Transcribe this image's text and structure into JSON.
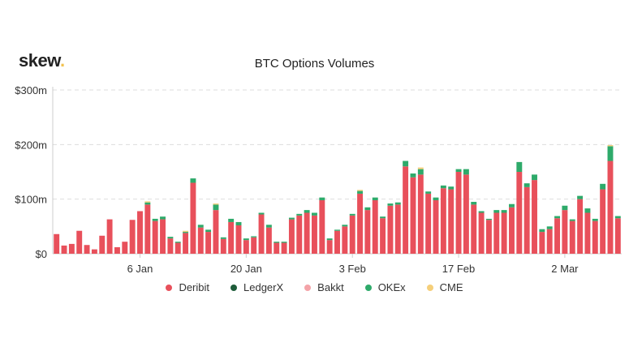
{
  "logo": {
    "text": "skew",
    "dot": ".",
    "dot_color": "#f2c14e"
  },
  "chart_data": {
    "type": "bar",
    "stacked": true,
    "title": "BTC Options Volumes",
    "xlabel": "",
    "ylabel": "",
    "ylim": [
      0,
      300
    ],
    "y_ticks": [
      {
        "value": 0,
        "label": "$0"
      },
      {
        "value": 100,
        "label": "$100m"
      },
      {
        "value": 200,
        "label": "$200m"
      },
      {
        "value": 300,
        "label": "$300m"
      }
    ],
    "x_ticks": [
      {
        "index": 11,
        "label": "6 Jan"
      },
      {
        "index": 25,
        "label": "20 Jan"
      },
      {
        "index": 39,
        "label": "3 Feb"
      },
      {
        "index": 53,
        "label": "17 Feb"
      },
      {
        "index": 67,
        "label": "2 Mar"
      }
    ],
    "grid": true,
    "legend_position": "bottom",
    "series": [
      {
        "name": "Deribit",
        "color": "#e8505b",
        "values": [
          36,
          15,
          18,
          42,
          16,
          8,
          33,
          63,
          12,
          22,
          62,
          78,
          90,
          60,
          63,
          28,
          20,
          38,
          130,
          48,
          40,
          80,
          27,
          58,
          52,
          25,
          30,
          72,
          48,
          20,
          20,
          63,
          70,
          75,
          70,
          98,
          25,
          42,
          50,
          70,
          110,
          80,
          98,
          65,
          88,
          90,
          160,
          140,
          145,
          110,
          98,
          120,
          118,
          150,
          145,
          90,
          75,
          62,
          75,
          75,
          85,
          150,
          122,
          135,
          40,
          45,
          65,
          80,
          60,
          100,
          75,
          60,
          118,
          170,
          65
        ]
      },
      {
        "name": "LedgerX",
        "color": "#1e5c3a",
        "values": [
          0,
          0,
          0,
          0,
          0,
          0,
          0,
          0,
          0,
          0,
          0,
          0,
          0,
          0,
          0,
          0,
          0,
          0,
          0,
          0,
          0,
          0,
          0,
          0,
          0,
          0,
          0,
          0,
          0,
          0,
          0,
          0,
          0,
          0,
          0,
          0,
          0,
          0,
          0,
          0,
          0,
          0,
          0,
          0,
          0,
          0,
          0,
          0,
          0,
          0,
          0,
          0,
          0,
          0,
          0,
          0,
          0,
          0,
          0,
          0,
          0,
          0,
          0,
          0,
          0,
          0,
          0,
          0,
          0,
          0,
          0,
          0,
          0,
          0,
          0
        ]
      },
      {
        "name": "Bakkt",
        "color": "#f4a3a8",
        "values": [
          0,
          0,
          0,
          0,
          0,
          0,
          0,
          0,
          0,
          0,
          0,
          0,
          0,
          0,
          0,
          0,
          0,
          0,
          0,
          0,
          0,
          0,
          0,
          0,
          0,
          0,
          0,
          0,
          0,
          0,
          0,
          0,
          0,
          0,
          0,
          0,
          0,
          0,
          0,
          0,
          0,
          0,
          0,
          0,
          0,
          0,
          0,
          0,
          0,
          0,
          0,
          0,
          0,
          0,
          0,
          0,
          0,
          0,
          0,
          0,
          0,
          0,
          0,
          0,
          0,
          0,
          0,
          0,
          0,
          0,
          0,
          0,
          0,
          0,
          0
        ]
      },
      {
        "name": "OKEx",
        "color": "#2eaa6a",
        "values": [
          0,
          0,
          0,
          0,
          0,
          0,
          0,
          0,
          0,
          0,
          0,
          0,
          4,
          4,
          5,
          3,
          2,
          2,
          8,
          5,
          4,
          10,
          3,
          6,
          6,
          3,
          2,
          3,
          5,
          2,
          2,
          3,
          3,
          5,
          5,
          5,
          3,
          2,
          3,
          3,
          5,
          5,
          5,
          3,
          4,
          4,
          10,
          7,
          10,
          4,
          5,
          5,
          5,
          5,
          10,
          5,
          3,
          2,
          5,
          5,
          6,
          18,
          7,
          10,
          5,
          5,
          4,
          8,
          3,
          6,
          8,
          4,
          10,
          27,
          4
        ]
      },
      {
        "name": "CME",
        "color": "#f5cf7a",
        "values": [
          0,
          0,
          0,
          0,
          0,
          0,
          0,
          0,
          0,
          0,
          0,
          0,
          2,
          0,
          0,
          0,
          0,
          2,
          0,
          0,
          0,
          2,
          0,
          0,
          0,
          0,
          0,
          0,
          0,
          0,
          0,
          0,
          0,
          0,
          0,
          0,
          0,
          0,
          0,
          0,
          2,
          0,
          0,
          0,
          0,
          0,
          0,
          0,
          3,
          0,
          0,
          0,
          0,
          0,
          0,
          0,
          0,
          0,
          0,
          0,
          0,
          0,
          0,
          0,
          0,
          0,
          0,
          0,
          0,
          0,
          0,
          0,
          0,
          2,
          0
        ]
      }
    ]
  }
}
